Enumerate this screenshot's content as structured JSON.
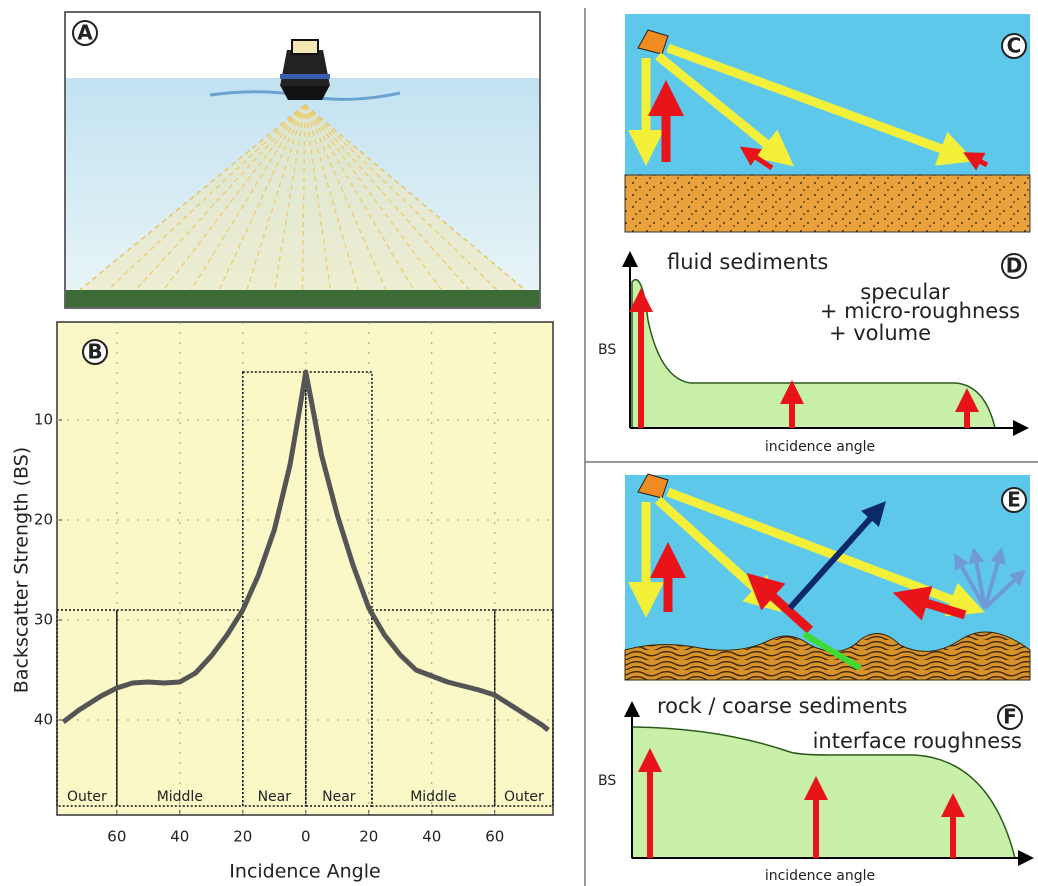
{
  "panel_labels": [
    "A",
    "B",
    "C",
    "D",
    "E",
    "F"
  ],
  "chart_data": {
    "type": "line",
    "x_label": "Incidence Angle",
    "y_label": "Backscatter Strength (BS)",
    "x": [
      -77,
      -72,
      -65,
      -60,
      -55,
      -50,
      -45,
      -40,
      -35,
      -30,
      -25,
      -20,
      -15,
      -10,
      -5,
      -2,
      0,
      2,
      5,
      10,
      15,
      20,
      25,
      30,
      35,
      40,
      45,
      50,
      55,
      60,
      65,
      70,
      75,
      77
    ],
    "values": [
      40.2,
      39,
      37.6,
      36.8,
      36.3,
      36.2,
      36.3,
      36.2,
      35.3,
      33.6,
      31.5,
      29,
      25.5,
      21,
      14.5,
      9,
      5.2,
      8.5,
      13.5,
      19.5,
      24.5,
      28.8,
      31.5,
      33.5,
      35,
      35.6,
      36.2,
      36.6,
      37,
      37.5,
      38.5,
      39.5,
      40.5,
      41
    ],
    "color": "#555555",
    "xlim": [
      -79,
      78.5
    ],
    "ylim": [
      0.2,
      49.5
    ],
    "y_inverted": true,
    "xticks": [
      {
        "value": -60,
        "label": "60"
      },
      {
        "value": -40,
        "label": "40"
      },
      {
        "value": -20,
        "label": "20"
      },
      0,
      20,
      40,
      60
    ],
    "yticks": [
      10,
      20,
      30,
      40
    ],
    "grid": true,
    "background": "#fbf8c8",
    "regions": [
      {
        "label": "Outer",
        "from": -79,
        "to": -60,
        "top": 29
      },
      {
        "label": "Middle",
        "from": -60,
        "to": -20,
        "top": 29
      },
      {
        "label": "Near",
        "from": -20,
        "to": 0,
        "top": 5.2
      },
      {
        "label": "Near",
        "from": 0,
        "to": 21,
        "top": 5.2
      },
      {
        "label": "Middle",
        "from": 21,
        "to": 60,
        "top": 29
      },
      {
        "label": "Outer",
        "from": 60,
        "to": 78.5,
        "top": 29
      }
    ]
  },
  "panel_d": {
    "title": "fluid sediments",
    "notes": [
      "specular",
      "+ micro-roughness",
      "+ volume"
    ],
    "y_label": "BS",
    "x_label": "incidence angle"
  },
  "panel_f": {
    "title": "rock / coarse sediments",
    "notes": [
      "interface roughness"
    ],
    "y_label": "BS",
    "x_label": "incidence angle"
  }
}
